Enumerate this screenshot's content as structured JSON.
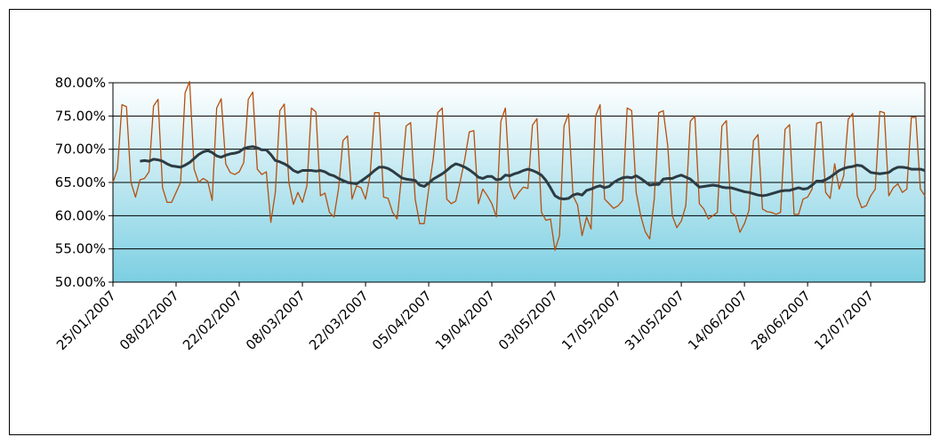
{
  "chart_data": {
    "type": "line",
    "categories": [
      "25/01/2007",
      null,
      null,
      null,
      null,
      null,
      null,
      null,
      null,
      null,
      null,
      null,
      null,
      null,
      "08/02/2007",
      null,
      null,
      null,
      null,
      null,
      null,
      null,
      null,
      null,
      null,
      null,
      null,
      null,
      "22/02/2007",
      null,
      null,
      null,
      null,
      null,
      null,
      null,
      null,
      null,
      null,
      null,
      null,
      null,
      "08/03/2007",
      null,
      null,
      null,
      null,
      null,
      null,
      null,
      null,
      null,
      null,
      null,
      null,
      null,
      "22/03/2007",
      null,
      null,
      null,
      null,
      null,
      null,
      null,
      null,
      null,
      null,
      null,
      null,
      null,
      "05/04/2007",
      null,
      null,
      null,
      null,
      null,
      null,
      null,
      null,
      null,
      null,
      null,
      null,
      null,
      "19/04/2007",
      null,
      null,
      null,
      null,
      null,
      null,
      null,
      null,
      null,
      null,
      null,
      null,
      null,
      "03/05/2007",
      null,
      null,
      null,
      null,
      null,
      null,
      null,
      null,
      null,
      null,
      null,
      null,
      null,
      "17/05/2007",
      null,
      null,
      null,
      null,
      null,
      null,
      null,
      null,
      null,
      null,
      null,
      null,
      null,
      "31/05/2007",
      null,
      null,
      null,
      null,
      null,
      null,
      null,
      null,
      null,
      null,
      null,
      null,
      null,
      "14/06/2007",
      null,
      null,
      null,
      null,
      null,
      null,
      null,
      null,
      null,
      null,
      null,
      null,
      null,
      "28/06/2007",
      null,
      null,
      null,
      null,
      null,
      null,
      null,
      null,
      null,
      null,
      null,
      null,
      null,
      "12/07/2007",
      null,
      null,
      null,
      null,
      null,
      null,
      null,
      null,
      null,
      null,
      null,
      null
    ],
    "series": [
      {
        "color": "#b5500f",
        "width": 1.3,
        "values": [
          65,
          67,
          76.7,
          76.4,
          65,
          62.8,
          65.4,
          65.6,
          66.6,
          76.5,
          77.5,
          64.2,
          62,
          62,
          63.5,
          65,
          78.5,
          80.2,
          67,
          65,
          65.6,
          65.2,
          62.3,
          76.2,
          77.6,
          67.8,
          66.5,
          66.2,
          66.6,
          68,
          77.5,
          78.6,
          67,
          66.2,
          66.6,
          59,
          63.5,
          75.8,
          76.8,
          65,
          61.7,
          63.5,
          62,
          64.5,
          76.2,
          75.6,
          63,
          63.4,
          60.5,
          59.8,
          64,
          71.3,
          72,
          62.5,
          64.5,
          64.2,
          62.5,
          66,
          75.5,
          75.5,
          62.8,
          62.6,
          60.5,
          59.5,
          66,
          73.5,
          74,
          62.5,
          58.8,
          58.8,
          64,
          68.5,
          75.5,
          76.2,
          62.5,
          61.8,
          62.2,
          65.2,
          68.5,
          72.6,
          72.8,
          61.8,
          64,
          63,
          61.8,
          59.8,
          74.2,
          76.2,
          64.5,
          62.5,
          63.5,
          64.3,
          64.1,
          73.6,
          74.6,
          60.5,
          59.3,
          59.5,
          54.8,
          57,
          73.5,
          75.3,
          63,
          61.6,
          57,
          59.8,
          58,
          75,
          76.7,
          62.5,
          61.8,
          61.1,
          61.5,
          62.3,
          76.2,
          75.8,
          63.5,
          60,
          57.6,
          56.5,
          62.5,
          75.5,
          75.8,
          70.5,
          60,
          58.2,
          59.2,
          61.5,
          74.2,
          75,
          61.8,
          61,
          59.5,
          60,
          60.5,
          73.5,
          74.3,
          60.5,
          60,
          57.5,
          58.8,
          60.8,
          71.3,
          72.2,
          61,
          60.6,
          60.5,
          60.2,
          60.5,
          73,
          73.7,
          60.2,
          60.2,
          62.5,
          62.8,
          64,
          73.9,
          74.1,
          63.5,
          62.6,
          67.8,
          64,
          66,
          74.5,
          75.4,
          63,
          61.2,
          61.5,
          63,
          64,
          75.7,
          75.5,
          63,
          64.2,
          64.8,
          63.5,
          64,
          74.8,
          74.8,
          64,
          63
        ]
      },
      {
        "color": "#2d3b42",
        "width": 3,
        "values": [
          null,
          null,
          null,
          null,
          null,
          null,
          68.2,
          68.3,
          68.2,
          68.5,
          68.4,
          68.2,
          67.8,
          67.5,
          67.4,
          67.3,
          67.6,
          68,
          68.6,
          69.2,
          69.6,
          69.8,
          69.5,
          69.0,
          68.8,
          69.1,
          69.3,
          69.4,
          69.6,
          70.1,
          70.3,
          70.4,
          70.2,
          69.9,
          69.9,
          69.2,
          68.3,
          68.1,
          67.8,
          67.4,
          66.8,
          66.5,
          66.8,
          66.8,
          66.8,
          66.7,
          66.8,
          66.6,
          66.2,
          66.0,
          65.6,
          65.3,
          65.0,
          64.9,
          64.8,
          65.2,
          65.7,
          66.2,
          66.8,
          67.3,
          67.3,
          67.1,
          66.7,
          66.2,
          65.7,
          65.5,
          65.4,
          65.3,
          64.6,
          64.4,
          64.9,
          65.5,
          65.9,
          66.3,
          66.8,
          67.4,
          67.8,
          67.6,
          67.3,
          66.9,
          66.4,
          65.8,
          65.6,
          65.9,
          65.9,
          65.4,
          65.5,
          66.1,
          66.0,
          66.3,
          66.5,
          66.8,
          67.0,
          66.8,
          66.5,
          66.1,
          65.3,
          64.2,
          63.0,
          62.6,
          62.5,
          62.6,
          63.1,
          63.3,
          63.1,
          63.8,
          64.0,
          64.3,
          64.5,
          64.2,
          64.4,
          65.0,
          65.4,
          65.7,
          65.8,
          65.7,
          66.0,
          65.6,
          65.1,
          64.6,
          64.7,
          64.7,
          65.5,
          65.6,
          65.6,
          65.9,
          66.1,
          65.8,
          65.5,
          64.9,
          64.3,
          64.4,
          64.5,
          64.6,
          64.5,
          64.3,
          64.2,
          64.2,
          64.0,
          63.8,
          63.6,
          63.5,
          63.3,
          63.1,
          63.0,
          63.1,
          63.3,
          63.5,
          63.7,
          63.8,
          63.8,
          64.0,
          64.2,
          64.0,
          64.1,
          64.6,
          65.2,
          65.2,
          65.4,
          65.8,
          66.3,
          66.8,
          67.1,
          67.3,
          67.4,
          67.6,
          67.5,
          67.0,
          66.5,
          66.4,
          66.3,
          66.4,
          66.5,
          67.0,
          67.3,
          67.3,
          67.2,
          67.0,
          67.0,
          67.0,
          66.8
        ]
      }
    ],
    "ylim": [
      50,
      80
    ],
    "yticks": [
      {
        "value": 50,
        "label": "50.00%"
      },
      {
        "value": 55,
        "label": "55.00%"
      },
      {
        "value": 60,
        "label": "60.00%"
      },
      {
        "value": 65,
        "label": "65.00%"
      },
      {
        "value": 70,
        "label": "70.00%"
      },
      {
        "value": 75,
        "label": "75.00%"
      },
      {
        "value": 80,
        "label": "80.00%"
      }
    ],
    "grid": true
  }
}
